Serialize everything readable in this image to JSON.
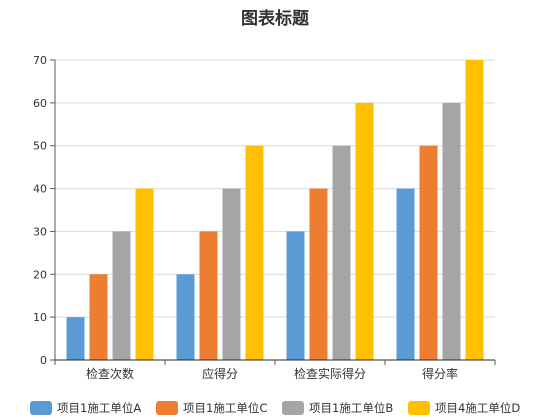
{
  "chart_data": {
    "type": "bar",
    "title": "图表标题",
    "xlabel": "",
    "ylabel": "",
    "ylim": [
      0,
      70
    ],
    "yticks": [
      0,
      10,
      20,
      30,
      40,
      50,
      60,
      70
    ],
    "grid": true,
    "legend_position": "bottom",
    "categories": [
      "检查次数",
      "应得分",
      "检查实际得分",
      "得分率"
    ],
    "series": [
      {
        "name": "项目1施工单位A",
        "color": "#5b9bd5",
        "values": [
          10,
          20,
          30,
          40
        ]
      },
      {
        "name": "项目1施工单位C",
        "color": "#ed7d31",
        "values": [
          20,
          30,
          40,
          50
        ]
      },
      {
        "name": "项目1施工单位B",
        "color": "#a5a5a5",
        "values": [
          30,
          40,
          50,
          60
        ]
      },
      {
        "name": "项目4施工单位D",
        "color": "#ffc000",
        "values": [
          40,
          50,
          60,
          70
        ]
      }
    ]
  }
}
